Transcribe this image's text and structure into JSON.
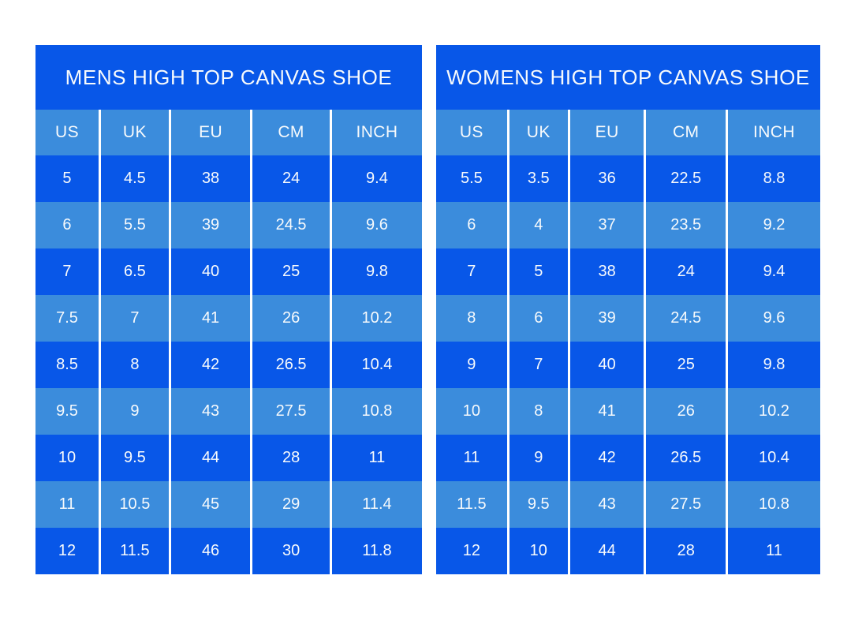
{
  "colors": {
    "dark_blue": "#0857E8",
    "light_blue": "#3B8CDC",
    "text": "#F7FAFC",
    "page_background": "#FFFFFF"
  },
  "chart_data": [
    {
      "type": "table",
      "title": "MENS HIGH TOP CANVAS SHOE",
      "columns": [
        "US",
        "UK",
        "EU",
        "CM",
        "INCH"
      ],
      "rows": [
        [
          "5",
          "4.5",
          "38",
          "24",
          "9.4"
        ],
        [
          "6",
          "5.5",
          "39",
          "24.5",
          "9.6"
        ],
        [
          "7",
          "6.5",
          "40",
          "25",
          "9.8"
        ],
        [
          "7.5",
          "7",
          "41",
          "26",
          "10.2"
        ],
        [
          "8.5",
          "8",
          "42",
          "26.5",
          "10.4"
        ],
        [
          "9.5",
          "9",
          "43",
          "27.5",
          "10.8"
        ],
        [
          "10",
          "9.5",
          "44",
          "28",
          "11"
        ],
        [
          "11",
          "10.5",
          "45",
          "29",
          "11.4"
        ],
        [
          "12",
          "11.5",
          "46",
          "30",
          "11.8"
        ]
      ],
      "layout": {
        "striping": "alternating dark/light starting dark",
        "grid": "white vertical separators only",
        "legend": "none"
      }
    },
    {
      "type": "table",
      "title": "WOMENS HIGH TOP CANVAS SHOE",
      "columns": [
        "US",
        "UK",
        "EU",
        "CM",
        "INCH"
      ],
      "rows": [
        [
          "5.5",
          "3.5",
          "36",
          "22.5",
          "8.8"
        ],
        [
          "6",
          "4",
          "37",
          "23.5",
          "9.2"
        ],
        [
          "7",
          "5",
          "38",
          "24",
          "9.4"
        ],
        [
          "8",
          "6",
          "39",
          "24.5",
          "9.6"
        ],
        [
          "9",
          "7",
          "40",
          "25",
          "9.8"
        ],
        [
          "10",
          "8",
          "41",
          "26",
          "10.2"
        ],
        [
          "11",
          "9",
          "42",
          "26.5",
          "10.4"
        ],
        [
          "11.5",
          "9.5",
          "43",
          "27.5",
          "10.8"
        ],
        [
          "12",
          "10",
          "44",
          "28",
          "11"
        ]
      ],
      "layout": {
        "striping": "alternating dark/light starting dark",
        "grid": "white vertical separators only",
        "legend": "none"
      }
    }
  ]
}
